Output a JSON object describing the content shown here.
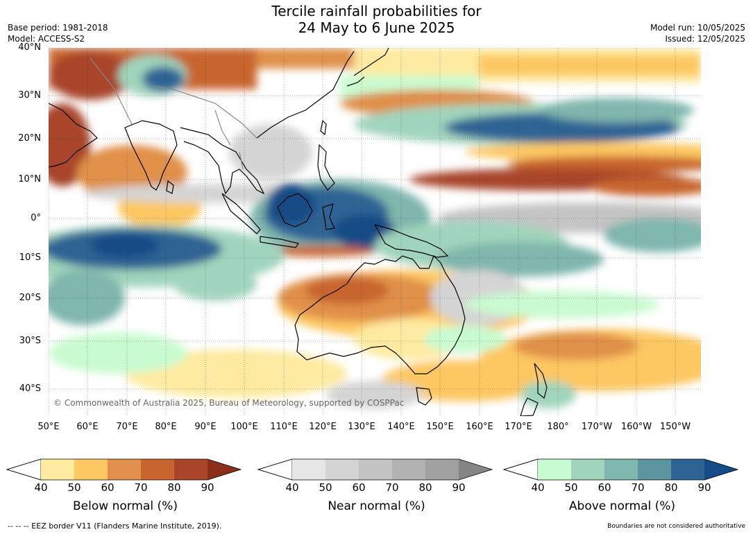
{
  "header": {
    "title_line1": "Tercile rainfall probabilities for",
    "title_line2": "24 May to 6 June 2025",
    "base_period": "Base period: 1981-2018",
    "model": "Model: ACCESS-S2",
    "model_run": "Model run: 10/05/2025",
    "issued": "Issued: 12/05/2025"
  },
  "map": {
    "lat_labels": [
      "40°N",
      "30°N",
      "20°N",
      "10°N",
      "0°",
      "10°S",
      "20°S",
      "30°S",
      "40°S"
    ],
    "lon_labels": [
      "50°E",
      "60°E",
      "70°E",
      "80°E",
      "90°E",
      "100°E",
      "110°E",
      "120°E",
      "130°E",
      "140°E",
      "150°E",
      "160°E",
      "170°E",
      "180°",
      "170°W",
      "160°W",
      "150°W"
    ],
    "copyright": "© Commonwealth of Australia 2025, Bureau of Meteorology, supported by COSPPac",
    "colors": {
      "land_outline": "#000000",
      "border": "#888888"
    }
  },
  "colorbars": [
    {
      "label": "Below normal (%)",
      "ticks": [
        "40",
        "50",
        "60",
        "70",
        "80",
        "90"
      ],
      "colors": [
        "#ffffff",
        "#feeaa0",
        "#fdc762",
        "#e0904a",
        "#c8652f",
        "#a8452a",
        "#8b2e1a"
      ]
    },
    {
      "label": "Near normal (%)",
      "ticks": [
        "40",
        "50",
        "60",
        "70",
        "80",
        "90"
      ],
      "colors": [
        "#ffffff",
        "#e6e6e6",
        "#d4d4d4",
        "#c4c4c4",
        "#b2b2b2",
        "#a0a0a0",
        "#858585"
      ]
    },
    {
      "label": "Above normal (%)",
      "ticks": [
        "40",
        "50",
        "60",
        "70",
        "80",
        "90"
      ],
      "colors": [
        "#ffffff",
        "#c9fbd0",
        "#a0d4bc",
        "#7fb6ad",
        "#5c94a0",
        "#2f6394",
        "#134c86"
      ]
    }
  ],
  "footer": {
    "eez": "--  --  -- EEZ border V11 (Flanders Marine Institute, 2019).",
    "disclaimer": "Boundaries are not considered authoritative"
  }
}
